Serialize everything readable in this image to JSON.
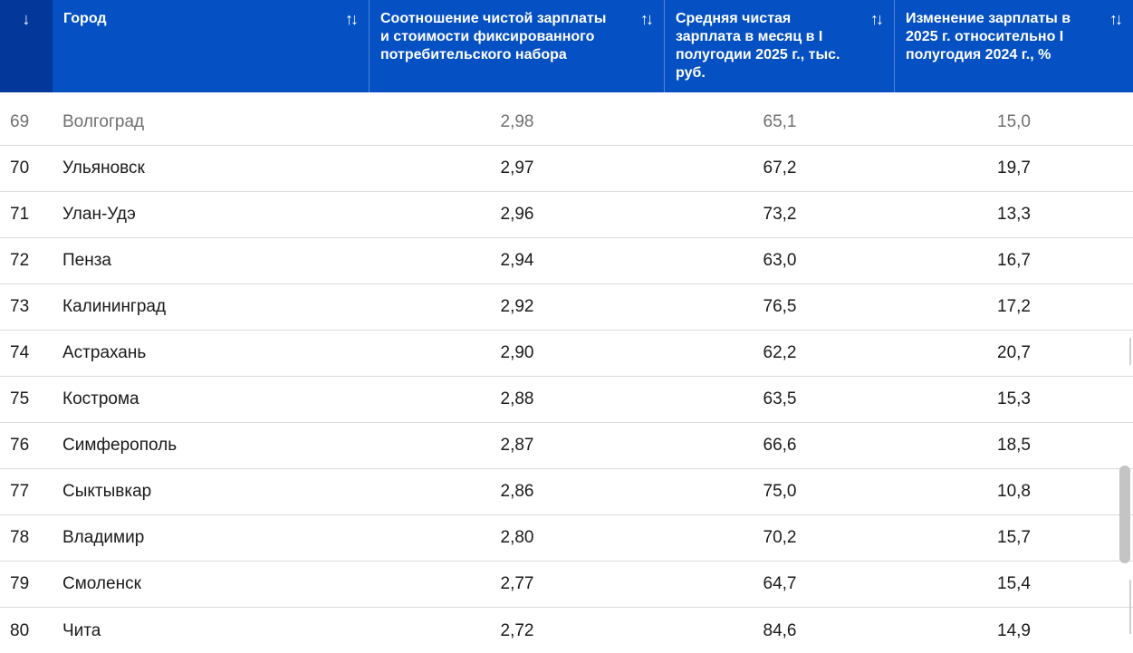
{
  "header": {
    "rank_sort_icon": "↓",
    "sort_icon": "↑↓",
    "columns": {
      "city": "Город",
      "ratio": "Соотношение чистой зарплаты и стоимости фиксированного потребительского набора",
      "salary": "Средняя чистая зарплата в месяц в I полугодии 2025 г., тыс. руб.",
      "change": "Изменение зарплаты в 2025 г. относительно I полугодия 2024 г., %"
    }
  },
  "rows": [
    {
      "rank": "69",
      "city": "Волгоград",
      "ratio": "2,98",
      "salary": "65,1",
      "change": "15,0"
    },
    {
      "rank": "70",
      "city": "Ульяновск",
      "ratio": "2,97",
      "salary": "67,2",
      "change": "19,7"
    },
    {
      "rank": "71",
      "city": "Улан-Удэ",
      "ratio": "2,96",
      "salary": "73,2",
      "change": "13,3"
    },
    {
      "rank": "72",
      "city": "Пенза",
      "ratio": "2,94",
      "salary": "63,0",
      "change": "16,7"
    },
    {
      "rank": "73",
      "city": "Калининград",
      "ratio": "2,92",
      "salary": "76,5",
      "change": "17,2"
    },
    {
      "rank": "74",
      "city": "Астрахань",
      "ratio": "2,90",
      "salary": "62,2",
      "change": "20,7"
    },
    {
      "rank": "75",
      "city": "Кострома",
      "ratio": "2,88",
      "salary": "63,5",
      "change": "15,3"
    },
    {
      "rank": "76",
      "city": "Симферополь",
      "ratio": "2,87",
      "salary": "66,6",
      "change": "18,5"
    },
    {
      "rank": "77",
      "city": "Сыктывкар",
      "ratio": "2,86",
      "salary": "75,0",
      "change": "10,8"
    },
    {
      "rank": "78",
      "city": "Владимир",
      "ratio": "2,80",
      "salary": "70,2",
      "change": "15,7"
    },
    {
      "rank": "79",
      "city": "Смоленск",
      "ratio": "2,77",
      "salary": "64,7",
      "change": "15,4"
    },
    {
      "rank": "80",
      "city": "Чита",
      "ratio": "2,72",
      "salary": "84,6",
      "change": "14,9"
    }
  ],
  "colors": {
    "header_bg": "#0550c2",
    "rank_header_bg": "#03389a",
    "header_text": "#ffffff",
    "row_divider": "#dcdcdc"
  },
  "icons": {
    "rank_sort": "arrow-down-icon",
    "column_sort": "sort-up-down-icon"
  }
}
